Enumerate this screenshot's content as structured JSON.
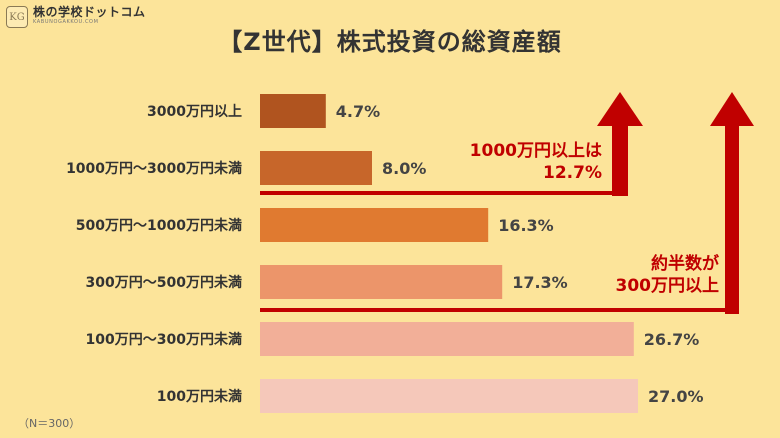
{
  "brand": {
    "name": "株の学校ドットコム",
    "sub": "KABUNOGAKKOU.COM",
    "mark": "KG"
  },
  "chart_data": {
    "type": "bar",
    "orientation": "horizontal",
    "title": "【Z世代】株式投資の総資産額",
    "categories": [
      "3000万円以上",
      "1000万円～3000万円未満",
      "500万円～1000万円未満",
      "300万円～500万円未満",
      "100万円～300万円未満",
      "100万円未満"
    ],
    "values": [
      4.7,
      8.0,
      16.3,
      17.3,
      26.7,
      27.0
    ],
    "value_labels": [
      "4.7%",
      "8.0%",
      "16.3%",
      "17.3%",
      "26.7%",
      "27.0%"
    ],
    "colors": [
      "#B0541F",
      "#C7662A",
      "#E07A30",
      "#EC956A",
      "#F2AF98",
      "#F5C8BA"
    ],
    "unit": "%",
    "xlim": [
      0,
      30
    ],
    "grid": false,
    "legend": "none",
    "annotations": [
      {
        "text": [
          "1000万円以上は",
          "12.7%"
        ],
        "color": "#C00000"
      },
      {
        "text": [
          "約半数が",
          "300万円以上"
        ],
        "color": "#C00000"
      }
    ]
  },
  "footnote": "（N＝300）"
}
